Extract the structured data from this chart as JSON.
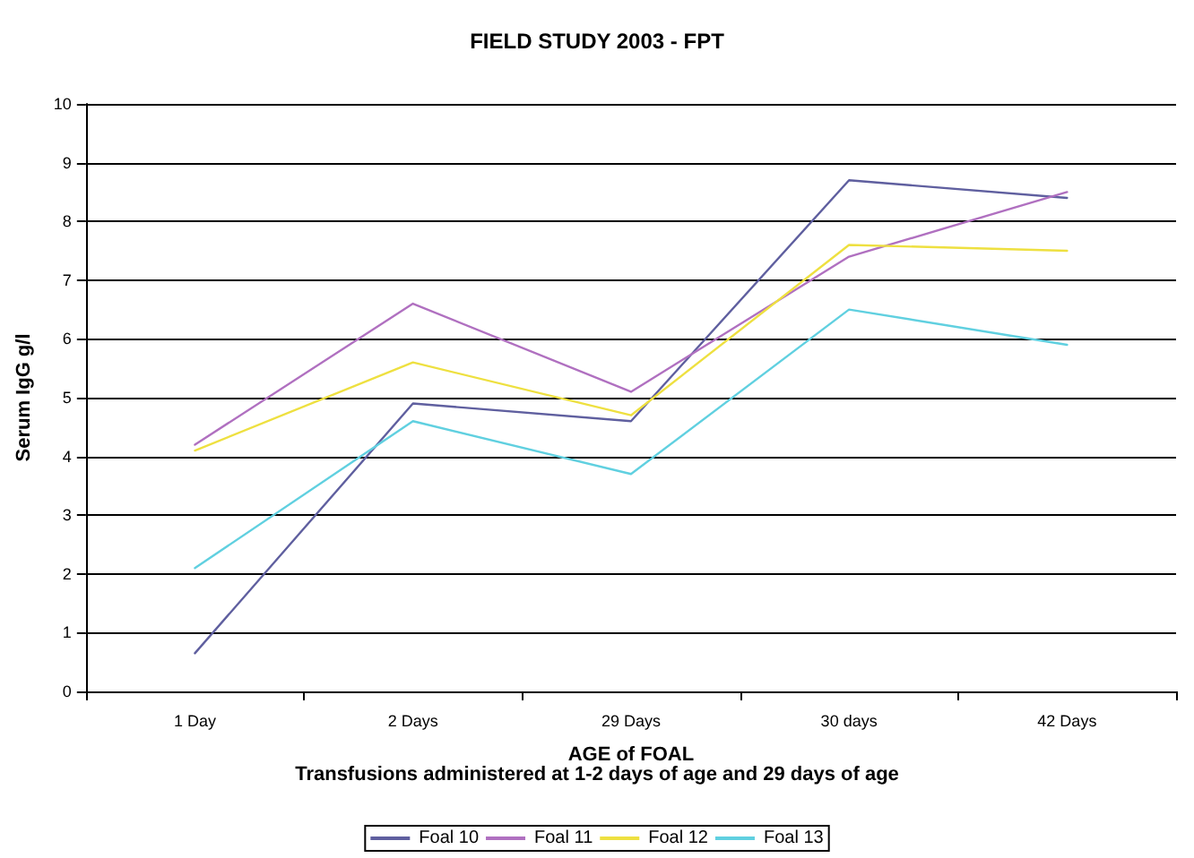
{
  "chart_data": {
    "type": "line",
    "title": "FIELD STUDY 2003 - FPT",
    "xlabel": "AGE of FOAL",
    "ylabel": "Serum IgG g/l",
    "annotations": [
      "Transfusions administered at 1-2 days of age and 29 days of age"
    ],
    "categories": [
      "1 Day",
      "2 Days",
      "29 Days",
      "30 days",
      "42 Days"
    ],
    "series": [
      {
        "name": "Foal 10",
        "color": "#5f5f9f",
        "values": [
          0.65,
          4.9,
          4.6,
          8.7,
          8.4
        ]
      },
      {
        "name": "Foal 11",
        "color": "#b070c0",
        "values": [
          4.2,
          6.6,
          5.1,
          7.4,
          8.5
        ]
      },
      {
        "name": "Foal 12",
        "color": "#eee040",
        "values": [
          4.1,
          5.6,
          4.7,
          7.6,
          7.5
        ]
      },
      {
        "name": "Foal 13",
        "color": "#60d0e0",
        "values": [
          2.1,
          4.6,
          3.7,
          6.5,
          5.9
        ]
      }
    ],
    "ylim": [
      0,
      10
    ],
    "yticks": [
      0,
      1,
      2,
      3,
      4,
      5,
      6,
      7,
      8,
      9,
      10
    ],
    "grid": "y",
    "legend": "bottom",
    "marker": "none",
    "line_style": "solid"
  }
}
